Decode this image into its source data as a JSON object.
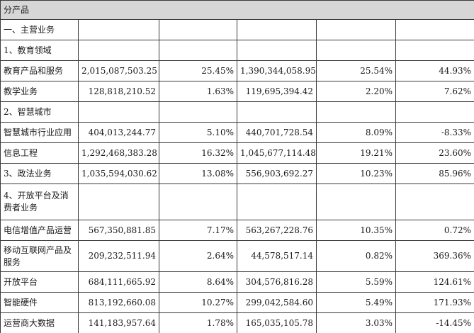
{
  "header": "分产品",
  "rows": [
    {
      "label": "一、主营业务",
      "v1": "",
      "v2": "",
      "v3": "",
      "v4": "",
      "v5": ""
    },
    {
      "label": "1、教育领域",
      "v1": "",
      "v2": "",
      "v3": "",
      "v4": "",
      "v5": ""
    },
    {
      "label": "教育产品和服务",
      "v1": "2,015,087,503.25",
      "v2": "25.45%",
      "v3": "1,390,344,058.95",
      "v4": "25.54%",
      "v5": "44.93%"
    },
    {
      "label": "教学业务",
      "v1": "128,818,210.52",
      "v2": "1.63%",
      "v3": "119,695,394.42",
      "v4": "2.20%",
      "v5": "7.62%"
    },
    {
      "label": "2、智慧城市",
      "v1": "",
      "v2": "",
      "v3": "",
      "v4": "",
      "v5": ""
    },
    {
      "label": "智慧城市行业应用",
      "v1": "404,013,244.77",
      "v2": "5.10%",
      "v3": "440,701,728.54",
      "v4": "8.09%",
      "v5": "-8.33%"
    },
    {
      "label": "信息工程",
      "v1": "1,292,468,383.28",
      "v2": "16.32%",
      "v3": "1,045,677,114.48",
      "v4": "19.21%",
      "v5": "23.60%"
    },
    {
      "label": "3、政法业务",
      "v1": "1,035,594,030.62",
      "v2": "13.08%",
      "v3": "556,903,692.27",
      "v4": "10.23%",
      "v5": "85.96%"
    },
    {
      "label": "4、开放平台及消费者业务",
      "v1": "",
      "v2": "",
      "v3": "",
      "v4": "",
      "v5": ""
    },
    {
      "label": "电信增值产品运营",
      "v1": "567,350,881.85",
      "v2": "7.17%",
      "v3": "563,267,228.76",
      "v4": "10.35%",
      "v5": "0.72%"
    },
    {
      "label": "移动互联网产品及服务",
      "v1": "209,232,511.94",
      "v2": "2.64%",
      "v3": "44,578,517.14",
      "v4": "0.82%",
      "v5": "369.36%"
    },
    {
      "label": "开放平台",
      "v1": "684,111,665.92",
      "v2": "8.64%",
      "v3": "304,576,816.28",
      "v4": "5.59%",
      "v5": "124.61%"
    },
    {
      "label": "智能硬件",
      "v1": "813,192,660.08",
      "v2": "10.27%",
      "v3": "299,042,584.60",
      "v4": "5.49%",
      "v5": "171.93%"
    },
    {
      "label": "运营商大数据",
      "v1": "141,183,957.64",
      "v2": "1.78%",
      "v3": "165,035,105.78",
      "v4": "3.03%",
      "v5": "-14.45%"
    }
  ]
}
